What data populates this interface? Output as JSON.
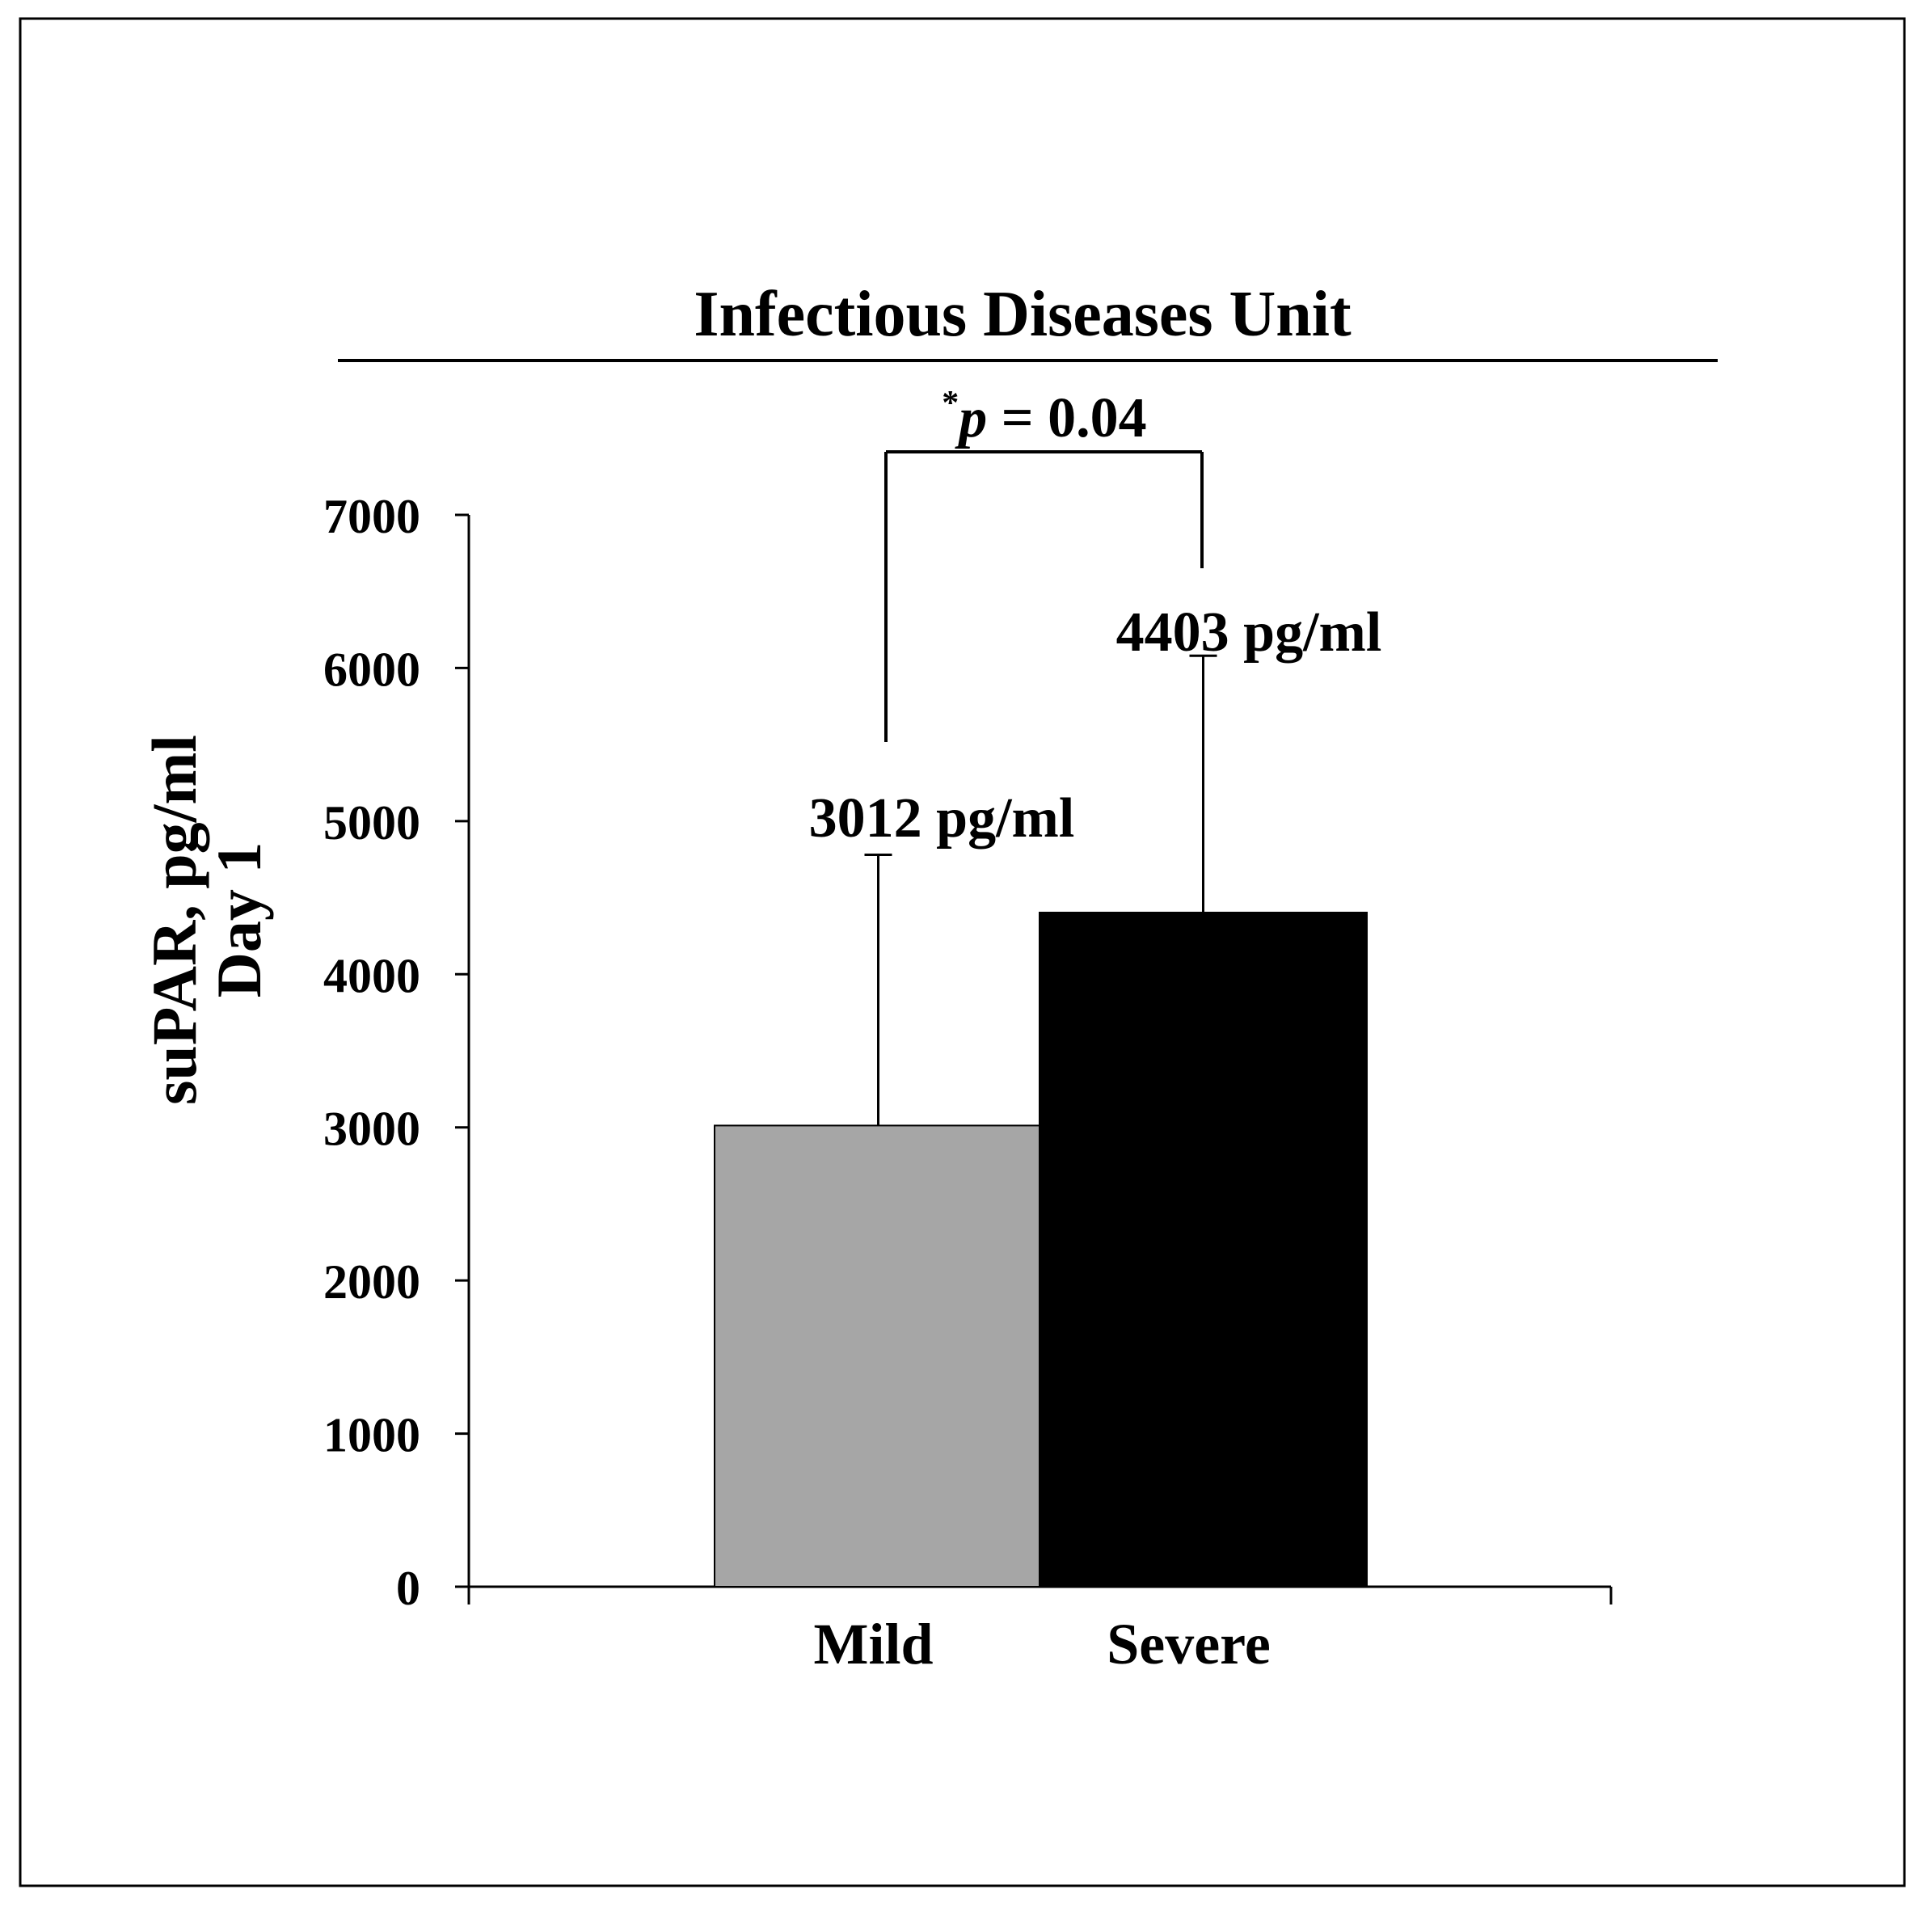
{
  "chart_data": {
    "type": "bar",
    "title": "Infectious Diseases Unit",
    "ylabel": [
      "suPAR, pg/ml",
      "Day 1"
    ],
    "xlabel": "",
    "categories": [
      "Mild",
      "Severe"
    ],
    "values": [
      3012,
      4403
    ],
    "error_upper": [
      4780,
      6080
    ],
    "value_labels": [
      "3012",
      "4403"
    ],
    "value_unit": "pg/ml",
    "bar_colors": [
      "#a6a6a6",
      "#000000"
    ],
    "ylim": [
      0,
      7000
    ],
    "yticks": [
      0,
      1000,
      2000,
      3000,
      4000,
      5000,
      6000,
      7000
    ],
    "grid": false,
    "legend": "none",
    "significance": {
      "star": "*",
      "p_symbol": "p",
      "text": " = 0.04",
      "between": [
        "Mild",
        "Severe"
      ]
    }
  }
}
